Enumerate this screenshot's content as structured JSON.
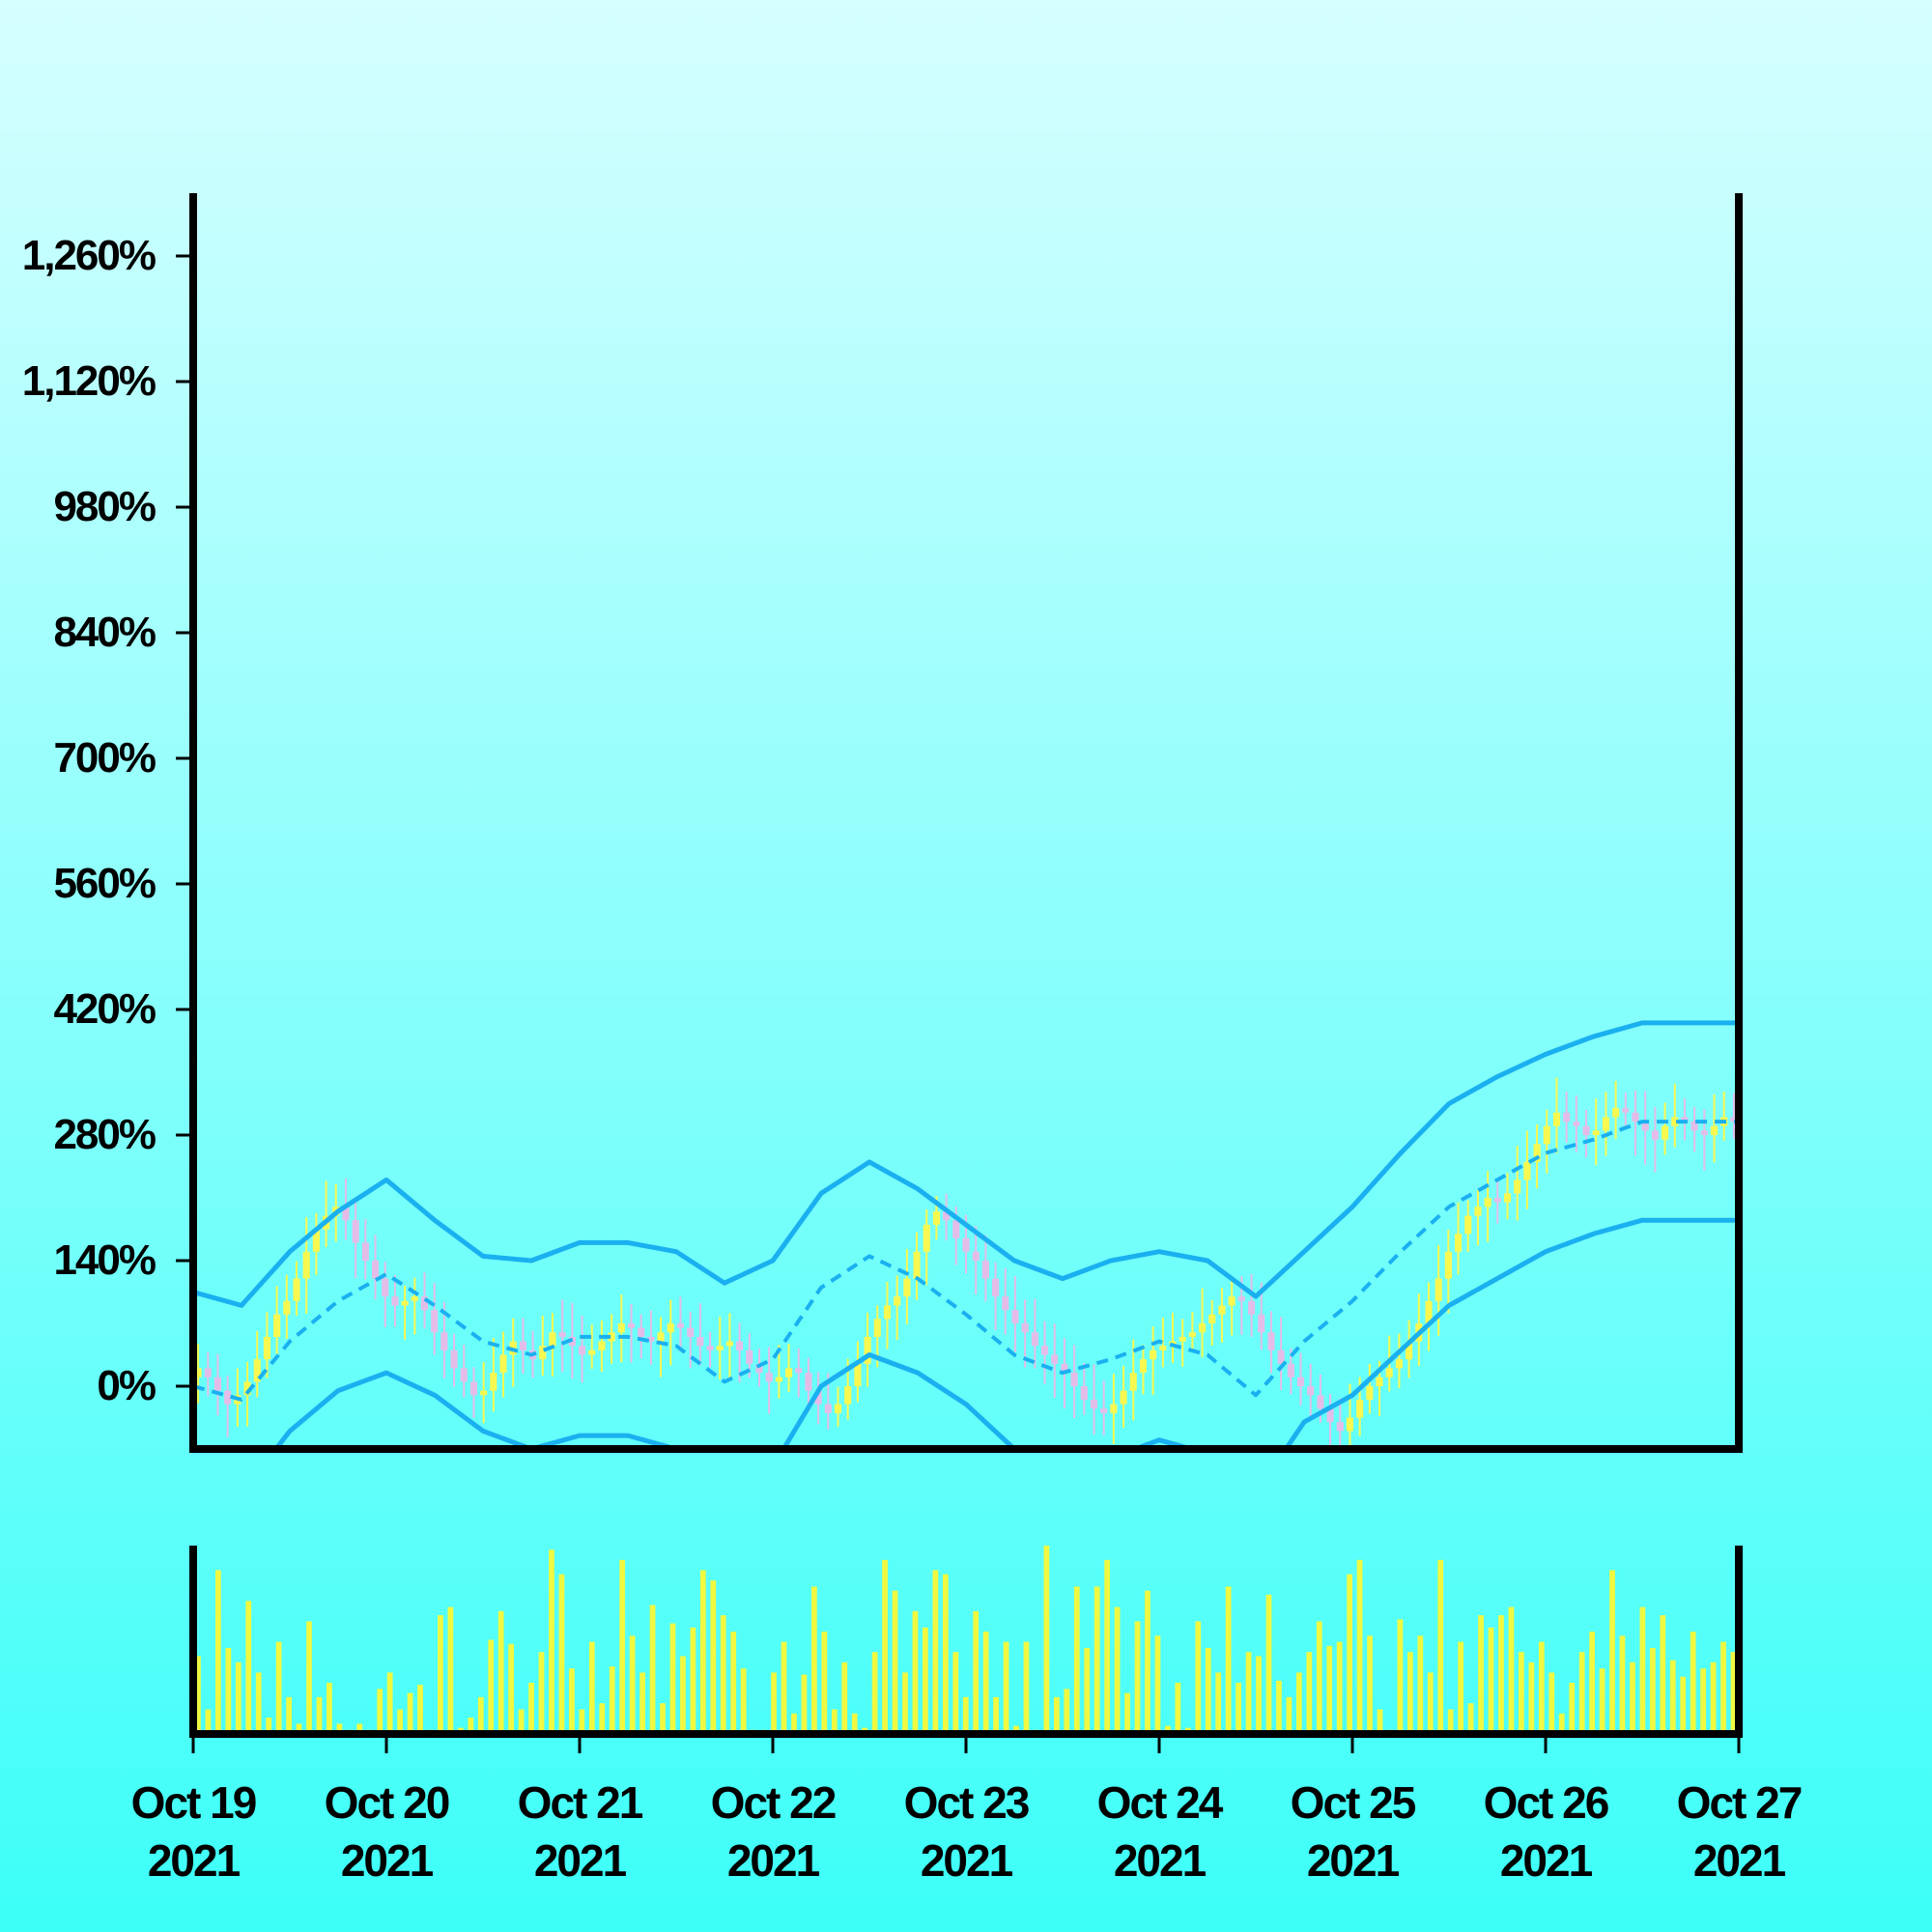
{
  "chart_data": {
    "type": "candlestick",
    "title": "",
    "xlabel": "",
    "ylabel": "",
    "y_axis": {
      "min": -70,
      "max": 1330,
      "ticks": [
        0,
        140,
        280,
        420,
        560,
        700,
        840,
        980,
        1120,
        1260
      ],
      "tick_labels": [
        "0%",
        "140%",
        "280%",
        "420%",
        "560%",
        "700%",
        "840%",
        "980%",
        "1,120%",
        "1,260%"
      ]
    },
    "x_axis": {
      "start": "2021-10-19",
      "end": "2021-10-27",
      "ticks": [
        {
          "date": "2021-10-19",
          "line1": "Oct 19",
          "line2": "2021"
        },
        {
          "date": "2021-10-20",
          "line1": "Oct 20",
          "line2": "2021"
        },
        {
          "date": "2021-10-21",
          "line1": "Oct 21",
          "line2": "2021"
        },
        {
          "date": "2021-10-22",
          "line1": "Oct 22",
          "line2": "2021"
        },
        {
          "date": "2021-10-23",
          "line1": "Oct 23",
          "line2": "2021"
        },
        {
          "date": "2021-10-24",
          "line1": "Oct 24",
          "line2": "2021"
        },
        {
          "date": "2021-10-25",
          "line1": "Oct 25",
          "line2": "2021"
        },
        {
          "date": "2021-10-26",
          "line1": "Oct 26",
          "line2": "2021"
        },
        {
          "date": "2021-10-27",
          "line1": "Oct 27",
          "line2": "2021"
        }
      ]
    },
    "bollinger_bands": {
      "color": "#1ab0f0",
      "points": [
        {
          "t": "2021-10-19 00:00",
          "mid": 0,
          "upper": 105,
          "lower": -105
        },
        {
          "t": "2021-10-19 06:00",
          "mid": -15,
          "upper": 90,
          "lower": -120
        },
        {
          "t": "2021-10-19 12:00",
          "mid": 50,
          "upper": 150,
          "lower": -50
        },
        {
          "t": "2021-10-19 18:00",
          "mid": 95,
          "upper": 195,
          "lower": -5
        },
        {
          "t": "2021-10-20 00:00",
          "mid": 125,
          "upper": 230,
          "lower": 15
        },
        {
          "t": "2021-10-20 06:00",
          "mid": 90,
          "upper": 185,
          "lower": -10
        },
        {
          "t": "2021-10-20 12:00",
          "mid": 50,
          "upper": 145,
          "lower": -50
        },
        {
          "t": "2021-10-20 18:00",
          "mid": 35,
          "upper": 140,
          "lower": -70
        },
        {
          "t": "2021-10-21 00:00",
          "mid": 55,
          "upper": 160,
          "lower": -55
        },
        {
          "t": "2021-10-21 06:00",
          "mid": 55,
          "upper": 160,
          "lower": -55
        },
        {
          "t": "2021-10-21 12:00",
          "mid": 45,
          "upper": 150,
          "lower": -70
        },
        {
          "t": "2021-10-21 18:00",
          "mid": 5,
          "upper": 115,
          "lower": -120
        },
        {
          "t": "2021-10-22 00:00",
          "mid": 30,
          "upper": 140,
          "lower": -90
        },
        {
          "t": "2021-10-22 06:00",
          "mid": 110,
          "upper": 215,
          "lower": 0
        },
        {
          "t": "2021-10-22 12:00",
          "mid": 145,
          "upper": 250,
          "lower": 35
        },
        {
          "t": "2021-10-22 18:00",
          "mid": 120,
          "upper": 220,
          "lower": 15
        },
        {
          "t": "2021-10-23 00:00",
          "mid": 80,
          "upper": 180,
          "lower": -20
        },
        {
          "t": "2021-10-23 06:00",
          "mid": 35,
          "upper": 140,
          "lower": -70
        },
        {
          "t": "2021-10-23 12:00",
          "mid": 15,
          "upper": 120,
          "lower": -90
        },
        {
          "t": "2021-10-23 18:00",
          "mid": 30,
          "upper": 140,
          "lower": -80
        },
        {
          "t": "2021-10-24 00:00",
          "mid": 50,
          "upper": 150,
          "lower": -60
        },
        {
          "t": "2021-10-24 06:00",
          "mid": 35,
          "upper": 140,
          "lower": -75
        },
        {
          "t": "2021-10-24 12:00",
          "mid": -10,
          "upper": 100,
          "lower": -120
        },
        {
          "t": "2021-10-24 18:00",
          "mid": 50,
          "upper": 150,
          "lower": -40
        },
        {
          "t": "2021-10-25 00:00",
          "mid": 95,
          "upper": 200,
          "lower": -10
        },
        {
          "t": "2021-10-25 06:00",
          "mid": 150,
          "upper": 260,
          "lower": 40
        },
        {
          "t": "2021-10-25 12:00",
          "mid": 200,
          "upper": 315,
          "lower": 90
        },
        {
          "t": "2021-10-25 18:00",
          "mid": 230,
          "upper": 345,
          "lower": 120
        },
        {
          "t": "2021-10-26 00:00",
          "mid": 260,
          "upper": 370,
          "lower": 150
        },
        {
          "t": "2021-10-26 06:00",
          "mid": 275,
          "upper": 390,
          "lower": 170
        },
        {
          "t": "2021-10-26 12:00",
          "mid": 295,
          "upper": 405,
          "lower": 185
        },
        {
          "t": "2021-10-26 18:00",
          "mid": 295,
          "upper": 405,
          "lower": 185
        },
        {
          "t": "2021-10-27 00:00",
          "mid": 295,
          "upper": 405,
          "lower": 185
        }
      ]
    },
    "candles": {
      "up_color": "#f8f850",
      "down_color": "#e4bce8",
      "note_values": "close price per bar (percent), sampled approximately",
      "close": [
        20,
        10,
        -5,
        -20,
        -10,
        5,
        30,
        55,
        80,
        95,
        120,
        150,
        175,
        190,
        200,
        185,
        160,
        140,
        120,
        100,
        90,
        95,
        100,
        85,
        60,
        40,
        20,
        5,
        -10,
        -5,
        15,
        35,
        50,
        40,
        30,
        45,
        60,
        55,
        45,
        35,
        40,
        50,
        60,
        70,
        65,
        55,
        50,
        60,
        70,
        65,
        55,
        45,
        40,
        45,
        50,
        40,
        25,
        15,
        5,
        10,
        20,
        15,
        -5,
        -20,
        -30,
        -20,
        0,
        25,
        55,
        75,
        90,
        100,
        120,
        150,
        180,
        195,
        185,
        165,
        150,
        140,
        120,
        100,
        85,
        70,
        60,
        45,
        35,
        25,
        15,
        0,
        -15,
        -25,
        -30,
        -20,
        -5,
        15,
        30,
        40,
        45,
        50,
        55,
        60,
        70,
        80,
        90,
        100,
        95,
        80,
        60,
        40,
        25,
        10,
        0,
        -10,
        -25,
        -40,
        -50,
        -35,
        -15,
        0,
        10,
        20,
        30,
        50,
        70,
        95,
        120,
        150,
        170,
        190,
        200,
        210,
        205,
        215,
        230,
        250,
        270,
        290,
        305,
        295,
        290,
        280,
        285,
        300,
        310,
        305,
        295,
        285,
        275,
        290,
        300,
        295,
        285,
        280,
        290,
        300,
        295
      ]
    },
    "volume": {
      "color": "#f0f840",
      "values": [
        38,
        12,
        80,
        42,
        35,
        65,
        30,
        8,
        45,
        18,
        5,
        55,
        18,
        25,
        5,
        2,
        5,
        2,
        22,
        30,
        12,
        20,
        24,
        2,
        58,
        62,
        3,
        8,
        18,
        46,
        60,
        44,
        12,
        25,
        40,
        90,
        78,
        32,
        12,
        45,
        15,
        33,
        85,
        48,
        30,
        63,
        15,
        54,
        38,
        52,
        80,
        75,
        58,
        50,
        32,
        2,
        2,
        30,
        45,
        10,
        29,
        72,
        50,
        12,
        35,
        10,
        3,
        40,
        85,
        70,
        30,
        60,
        52,
        80,
        78,
        40,
        18,
        60,
        50,
        18,
        45,
        4,
        45,
        2,
        92,
        18,
        22,
        72,
        42,
        72,
        85,
        62,
        20,
        55,
        70,
        48,
        4,
        25,
        3,
        55,
        42,
        30,
        72,
        25,
        40,
        38,
        68,
        26,
        18,
        30,
        40,
        55,
        43,
        45,
        78,
        85,
        48,
        12,
        2,
        56,
        40,
        48,
        30,
        85,
        12,
        45,
        15,
        58,
        52,
        58,
        62,
        40,
        35,
        45,
        30,
        10,
        25,
        40,
        50,
        32,
        80,
        48,
        35,
        62,
        42,
        58,
        36,
        28,
        50,
        32,
        35,
        45,
        40
      ]
    }
  }
}
